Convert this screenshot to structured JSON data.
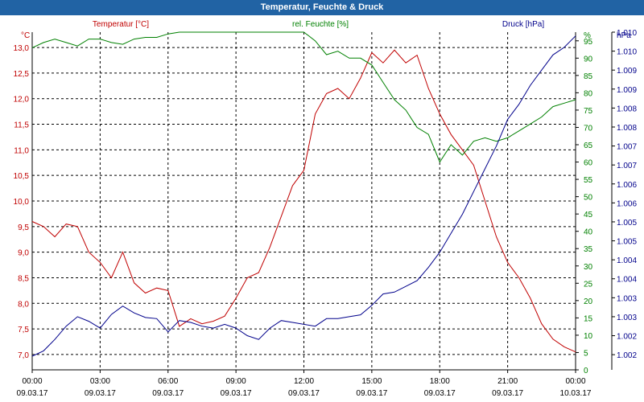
{
  "window": {
    "title": "Temperatur, Feuchte & Druck"
  },
  "colors": {
    "temperature": "#c00000",
    "humidity": "#008000",
    "pressure": "#00008b",
    "titlebar": "#2163a4"
  },
  "chart_data": {
    "type": "line",
    "title": "Temperatur, Feuchte & Druck",
    "grid": true,
    "legend": "top",
    "x_ticks": [
      {
        "time": "00:00",
        "date": "09.03.17"
      },
      {
        "time": "03:00",
        "date": "09.03.17"
      },
      {
        "time": "06:00",
        "date": "09.03.17"
      },
      {
        "time": "09:00",
        "date": "09.03.17"
      },
      {
        "time": "12:00",
        "date": "09.03.17"
      },
      {
        "time": "15:00",
        "date": "09.03.17"
      },
      {
        "time": "18:00",
        "date": "09.03.17"
      },
      {
        "time": "21:00",
        "date": "09.03.17"
      },
      {
        "time": "00:00",
        "date": "10.03.17"
      }
    ],
    "xlim": [
      "09.03.17 00:00",
      "10.03.17 00:00"
    ],
    "axes": {
      "temperature": {
        "label": "Temperatur [°C]",
        "unit": "°C",
        "ylim": [
          6.7,
          13.3
        ],
        "ticks": [
          "7,0",
          "7,5",
          "8,0",
          "8,5",
          "9,0",
          "9,5",
          "10,0",
          "10,5",
          "11,0",
          "11,5",
          "12,0",
          "12,5",
          "13,0"
        ]
      },
      "humidity": {
        "label": "rel. Feuchte [%]",
        "unit": "%",
        "ylim": [
          0,
          97.5
        ],
        "ticks": [
          "0",
          "5",
          "10",
          "15",
          "20",
          "25",
          "30",
          "35",
          "40",
          "45",
          "50",
          "55",
          "60",
          "65",
          "70",
          "75",
          "80",
          "85",
          "90",
          "95"
        ]
      },
      "pressure": {
        "label": "Druck [hPa]",
        "unit": "hPa",
        "ylim": [
          1001.6,
          1010.5
        ],
        "ticks": [
          "1.002",
          "1.002",
          "1.003",
          "1.003",
          "1.004",
          "1.004",
          "1.005",
          "1.005",
          "1.006",
          "1.006",
          "1.007",
          "1.007",
          "1.008",
          "1.008",
          "1.009",
          "1.009",
          "1.010",
          "1.010"
        ]
      }
    },
    "series": [
      {
        "name": "Temperatur [°C]",
        "axis": "temperature",
        "color": "#c00000",
        "x_hours": [
          0,
          0.5,
          1,
          1.5,
          2,
          2.5,
          3,
          3.5,
          4,
          4.5,
          5,
          5.5,
          6,
          6.5,
          7,
          7.5,
          8,
          8.5,
          9,
          9.5,
          10,
          10.5,
          11,
          11.5,
          12,
          12.5,
          13,
          13.5,
          14,
          14.5,
          15,
          15.5,
          16,
          16.5,
          17,
          17.5,
          18,
          18.5,
          19,
          19.5,
          20,
          20.5,
          21,
          21.5,
          22,
          22.5,
          23,
          23.5,
          24
        ],
        "values": [
          9.6,
          9.5,
          9.3,
          9.55,
          9.5,
          9.0,
          8.8,
          8.5,
          9.0,
          8.4,
          8.2,
          8.3,
          8.25,
          7.55,
          7.7,
          7.6,
          7.65,
          7.75,
          8.1,
          8.5,
          8.6,
          9.1,
          9.7,
          10.3,
          10.6,
          11.7,
          12.1,
          12.2,
          12.0,
          12.4,
          12.9,
          12.7,
          12.95,
          12.7,
          12.85,
          12.2,
          11.7,
          11.3,
          11.0,
          10.7,
          10.0,
          9.3,
          8.8,
          8.5,
          8.1,
          7.6,
          7.3,
          7.15,
          7.05
        ]
      },
      {
        "name": "rel. Feuchte [%]",
        "axis": "humidity",
        "color": "#008000",
        "x_hours": [
          0,
          0.5,
          1,
          1.5,
          2,
          2.5,
          3,
          3.5,
          4,
          4.5,
          5,
          5.5,
          6,
          6.5,
          7,
          7.5,
          8,
          8.5,
          9,
          9.5,
          10,
          10.5,
          11,
          11.5,
          12,
          12.5,
          13,
          13.5,
          14,
          14.5,
          15,
          15.5,
          16,
          16.5,
          17,
          17.5,
          18,
          18.5,
          19,
          19.5,
          20,
          20.5,
          21,
          21.5,
          22,
          22.5,
          23,
          23.5,
          24
        ],
        "values": [
          93,
          94.5,
          95.5,
          94.5,
          93.5,
          95.5,
          95.5,
          94.5,
          94,
          95.5,
          96,
          96,
          97,
          97.5,
          97.5,
          97.5,
          97.5,
          97.5,
          97.5,
          97.5,
          97.5,
          97.5,
          97.5,
          97.5,
          97.5,
          95,
          91,
          92,
          90,
          90,
          88,
          83,
          78,
          75,
          70,
          68,
          60,
          65,
          62,
          66,
          67,
          66,
          67,
          69,
          71,
          73,
          76,
          77,
          78
        ]
      },
      {
        "name": "Druck [hPa]",
        "axis": "pressure",
        "color": "#00008b",
        "x_hours": [
          0,
          0.5,
          1,
          1.5,
          2,
          2.5,
          3,
          3.5,
          4,
          4.5,
          5,
          5.5,
          6,
          6.5,
          7,
          7.5,
          8,
          8.5,
          9,
          9.5,
          10,
          10.5,
          11,
          11.5,
          12,
          12.5,
          13,
          13.5,
          14,
          14.5,
          15,
          15.5,
          16,
          16.5,
          17,
          17.5,
          18,
          18.5,
          19,
          19.5,
          20,
          20.5,
          21,
          21.5,
          22,
          22.5,
          23,
          23.5,
          24
        ],
        "values": [
          1001.96,
          1002.1,
          1002.4,
          1002.75,
          1003.0,
          1002.88,
          1002.7,
          1003.06,
          1003.28,
          1003.1,
          1002.98,
          1002.95,
          1002.6,
          1002.9,
          1002.85,
          1002.75,
          1002.7,
          1002.8,
          1002.7,
          1002.5,
          1002.4,
          1002.7,
          1002.9,
          1002.85,
          1002.8,
          1002.75,
          1002.95,
          1002.95,
          1003.0,
          1003.05,
          1003.3,
          1003.6,
          1003.65,
          1003.8,
          1003.95,
          1004.3,
          1004.7,
          1005.2,
          1005.7,
          1006.3,
          1006.9,
          1007.5,
          1008.2,
          1008.6,
          1009.1,
          1009.5,
          1009.9,
          1010.1,
          1010.4
        ]
      }
    ]
  }
}
